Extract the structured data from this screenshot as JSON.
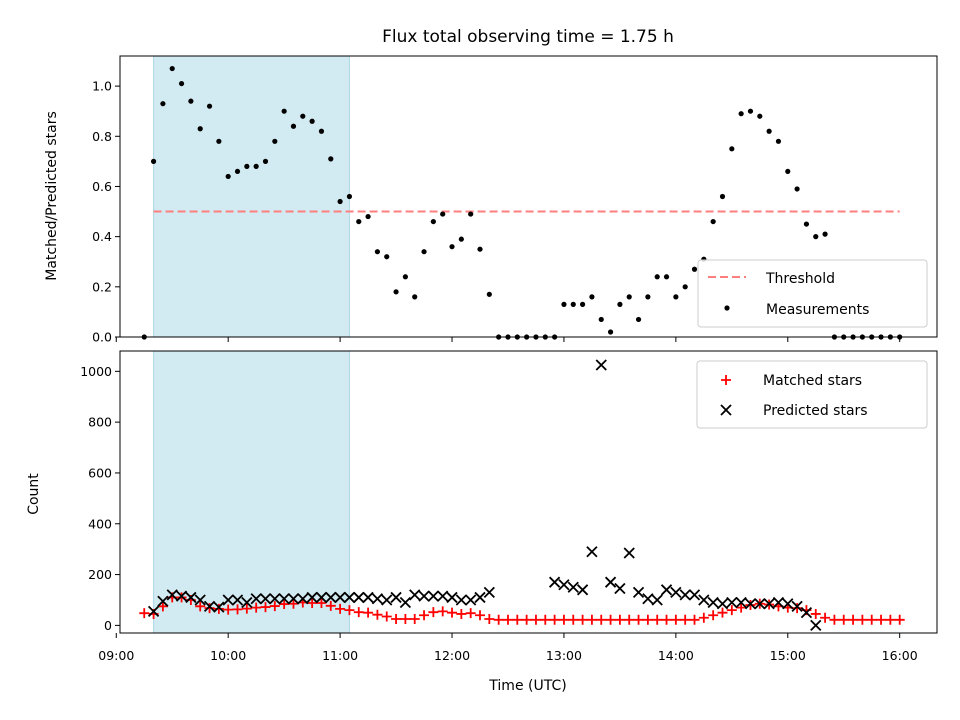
{
  "chart_data": [
    {
      "type": "scatter",
      "title": "Flux total observing time = 1.75 h",
      "ylabel": "Matched/Predicted stars",
      "xlabel": "",
      "xlim": [
        "09:02",
        "16:20"
      ],
      "ylim": [
        0,
        1.12
      ],
      "yticks": [
        "0.0",
        "0.2",
        "0.4",
        "0.6",
        "0.8",
        "1.0"
      ],
      "shaded_span": {
        "start": "09:20",
        "end": "11:05",
        "color": "#add8e6"
      },
      "threshold": {
        "name": "Threshold",
        "value": 0.5,
        "x": [
          "09:20",
          "16:00"
        ],
        "color": "#ff7f7f",
        "style": "dashed"
      },
      "series": [
        {
          "name": "Measurements",
          "color": "#000000",
          "marker": "dot",
          "x": [
            "09:15",
            "09:20",
            "09:25",
            "09:30",
            "09:35",
            "09:40",
            "09:45",
            "09:50",
            "09:55",
            "10:00",
            "10:05",
            "10:10",
            "10:15",
            "10:20",
            "10:25",
            "10:30",
            "10:35",
            "10:40",
            "10:45",
            "10:50",
            "10:55",
            "11:00",
            "11:05",
            "11:10",
            "11:15",
            "11:20",
            "11:25",
            "11:30",
            "11:35",
            "11:40",
            "11:45",
            "11:50",
            "11:55",
            "12:00",
            "12:05",
            "12:10",
            "12:15",
            "12:20",
            "12:25",
            "12:30",
            "12:35",
            "12:40",
            "12:45",
            "12:50",
            "12:55",
            "13:00",
            "13:05",
            "13:10",
            "13:15",
            "13:20",
            "13:25",
            "13:30",
            "13:35",
            "13:40",
            "13:45",
            "13:50",
            "13:55",
            "14:00",
            "14:05",
            "14:10",
            "14:15",
            "14:20",
            "14:25",
            "14:30",
            "14:35",
            "14:40",
            "14:45",
            "14:50",
            "14:55",
            "15:00",
            "15:05",
            "15:10",
            "15:15",
            "15:20",
            "15:25",
            "15:30",
            "15:35",
            "15:40",
            "15:45",
            "15:50",
            "15:55",
            "16:00"
          ],
          "y": [
            0.0,
            0.7,
            0.93,
            1.07,
            1.01,
            0.94,
            0.83,
            0.92,
            0.78,
            0.64,
            0.66,
            0.68,
            0.68,
            0.7,
            0.78,
            0.9,
            0.84,
            0.88,
            0.86,
            0.82,
            0.71,
            0.54,
            0.56,
            0.46,
            0.48,
            0.34,
            0.32,
            0.18,
            0.24,
            0.16,
            0.34,
            0.46,
            0.49,
            0.36,
            0.39,
            0.49,
            0.35,
            0.17,
            0.0,
            0.0,
            0.0,
            0.0,
            0.0,
            0.0,
            0.0,
            0.13,
            0.13,
            0.13,
            0.16,
            0.07,
            0.02,
            0.13,
            0.16,
            0.07,
            0.16,
            0.24,
            0.24,
            0.16,
            0.2,
            0.27,
            0.31,
            0.46,
            0.56,
            0.75,
            0.89,
            0.9,
            0.88,
            0.82,
            0.78,
            0.66,
            0.59,
            0.45,
            0.4,
            0.41,
            0.0,
            0.0,
            0.0,
            0.0,
            0.0,
            0.0,
            0.0,
            0.0
          ]
        }
      ],
      "legend": {
        "placement": "lower-right",
        "entries": [
          "Threshold",
          "Measurements"
        ]
      }
    },
    {
      "type": "scatter",
      "title": "",
      "xlabel": "Time (UTC)",
      "ylabel": "Count",
      "xlim": [
        "09:02",
        "16:20"
      ],
      "ylim": [
        -30,
        1080
      ],
      "xticks": [
        "09:00",
        "10:00",
        "11:00",
        "12:00",
        "13:00",
        "14:00",
        "15:00",
        "16:00"
      ],
      "yticks": [
        "0",
        "200",
        "400",
        "600",
        "800",
        "1000"
      ],
      "shaded_span": {
        "start": "09:20",
        "end": "11:05",
        "color": "#add8e6"
      },
      "series": [
        {
          "name": "Matched stars",
          "color": "#ff0000",
          "marker": "plus",
          "x": [
            "09:15",
            "09:20",
            "09:25",
            "09:30",
            "09:35",
            "09:40",
            "09:45",
            "09:50",
            "09:55",
            "10:00",
            "10:05",
            "10:10",
            "10:15",
            "10:20",
            "10:25",
            "10:30",
            "10:35",
            "10:40",
            "10:45",
            "10:50",
            "10:55",
            "11:00",
            "11:05",
            "11:10",
            "11:15",
            "11:20",
            "11:25",
            "11:30",
            "11:35",
            "11:40",
            "11:45",
            "11:50",
            "11:55",
            "12:00",
            "12:05",
            "12:10",
            "12:15",
            "12:20",
            "12:25",
            "12:30",
            "12:35",
            "12:40",
            "12:45",
            "12:50",
            "12:55",
            "13:00",
            "13:05",
            "13:10",
            "13:15",
            "13:20",
            "13:25",
            "13:30",
            "13:35",
            "13:40",
            "13:45",
            "13:50",
            "13:55",
            "14:00",
            "14:05",
            "14:10",
            "14:15",
            "14:20",
            "14:25",
            "14:30",
            "14:35",
            "14:40",
            "14:45",
            "14:50",
            "14:55",
            "15:00",
            "15:05",
            "15:10",
            "15:15",
            "15:20",
            "15:25",
            "15:30",
            "15:35",
            "15:40",
            "15:45",
            "15:50",
            "15:55",
            "16:00"
          ],
          "y": [
            48,
            45,
            75,
            110,
            110,
            100,
            75,
            68,
            65,
            62,
            63,
            66,
            70,
            72,
            76,
            84,
            85,
            90,
            88,
            88,
            77,
            65,
            60,
            52,
            50,
            42,
            35,
            25,
            25,
            25,
            40,
            52,
            55,
            50,
            45,
            48,
            40,
            25,
            22,
            22,
            22,
            22,
            22,
            22,
            22,
            22,
            22,
            22,
            22,
            22,
            22,
            22,
            22,
            22,
            22,
            22,
            22,
            22,
            22,
            22,
            30,
            40,
            50,
            60,
            70,
            80,
            85,
            82,
            75,
            70,
            68,
            60,
            45,
            30,
            22,
            22,
            22,
            22,
            22,
            22,
            22,
            22
          ]
        },
        {
          "name": "Predicted stars",
          "color": "#000000",
          "marker": "x",
          "x": [
            "09:20",
            "09:25",
            "09:30",
            "09:35",
            "09:40",
            "09:45",
            "09:50",
            "09:55",
            "10:00",
            "10:05",
            "10:10",
            "10:15",
            "10:20",
            "10:25",
            "10:30",
            "10:35",
            "10:40",
            "10:45",
            "10:50",
            "10:55",
            "11:00",
            "11:05",
            "11:10",
            "11:15",
            "11:20",
            "11:25",
            "11:30",
            "11:35",
            "11:40",
            "11:45",
            "11:50",
            "11:55",
            "12:00",
            "12:05",
            "12:10",
            "12:15",
            "12:20",
            "12:55",
            "13:00",
            "13:05",
            "13:10",
            "13:15",
            "13:20",
            "13:25",
            "13:30",
            "13:35",
            "13:40",
            "13:45",
            "13:50",
            "13:55",
            "14:00",
            "14:05",
            "14:10",
            "14:15",
            "14:20",
            "14:25",
            "14:30",
            "14:35",
            "14:40",
            "14:45",
            "14:50",
            "14:55",
            "15:00",
            "15:05",
            "15:10",
            "15:15"
          ],
          "y": [
            55,
            95,
            120,
            115,
            110,
            100,
            75,
            72,
            100,
            100,
            90,
            105,
            105,
            105,
            105,
            105,
            105,
            110,
            110,
            110,
            110,
            110,
            110,
            110,
            105,
            100,
            110,
            90,
            120,
            115,
            115,
            115,
            110,
            100,
            100,
            110,
            130,
            170,
            160,
            150,
            140,
            290,
            1025,
            170,
            145,
            285,
            130,
            105,
            100,
            140,
            130,
            120,
            120,
            100,
            90,
            85,
            90,
            90,
            85,
            85,
            85,
            90,
            85,
            75,
            50,
            0
          ]
        }
      ],
      "legend": {
        "placement": "upper-right",
        "entries": [
          "Matched stars",
          "Predicted stars"
        ]
      }
    }
  ]
}
